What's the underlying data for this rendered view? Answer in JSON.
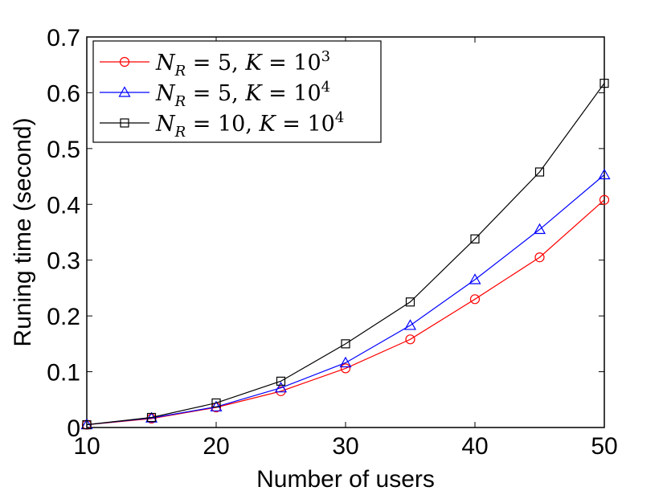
{
  "chart_data": {
    "type": "line",
    "title": "",
    "xlabel": "Number of users",
    "ylabel": "Runing time (second)",
    "xlim": [
      10,
      50
    ],
    "ylim": [
      0,
      0.7
    ],
    "xticks": [
      "10",
      "20",
      "30",
      "40",
      "50"
    ],
    "yticks": [
      "0",
      "0.1",
      "0.2",
      "0.3",
      "0.4",
      "0.5",
      "0.6",
      "0.7"
    ],
    "x": [
      10,
      15,
      20,
      25,
      30,
      35,
      40,
      45,
      50
    ],
    "grid": false,
    "legend_position": "top-left",
    "series": [
      {
        "name": "N_R = 5, K = 10^3",
        "legend": {
          "n_sub": "R",
          "n_val": "5",
          "k_base": "10",
          "k_exp": "3"
        },
        "color": "#ff0000",
        "marker": "circle",
        "values": [
          0.005,
          0.016,
          0.036,
          0.065,
          0.106,
          0.158,
          0.23,
          0.305,
          0.408
        ]
      },
      {
        "name": "N_R = 5, K = 10^4",
        "legend": {
          "n_sub": "R",
          "n_val": "5",
          "k_base": "10",
          "k_exp": "4"
        },
        "color": "#0000ff",
        "marker": "triangle",
        "values": [
          0.005,
          0.017,
          0.037,
          0.071,
          0.116,
          0.183,
          0.265,
          0.355,
          0.453
        ]
      },
      {
        "name": "N_R = 10, K = 10^4",
        "legend": {
          "n_sub": "R",
          "n_val": "10",
          "k_base": "10",
          "k_exp": "4"
        },
        "color": "#000000",
        "marker": "square",
        "values": [
          0.005,
          0.018,
          0.044,
          0.083,
          0.15,
          0.225,
          0.338,
          0.458,
          0.617
        ]
      }
    ]
  }
}
